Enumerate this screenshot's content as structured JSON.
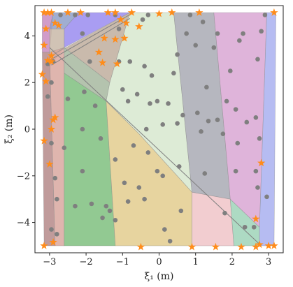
{
  "chart_data": {
    "type": "scatter",
    "xlabel": "ξ₁ (m)",
    "ylabel": "ξ₂ (m)",
    "xlim": [
      -3.4,
      3.4
    ],
    "ylim": [
      -5.3,
      5.3
    ],
    "xticks": [
      -3,
      -2,
      -1,
      0,
      1,
      2,
      3
    ],
    "xtick_labels": [
      "−3",
      "−2",
      "−1",
      "0",
      "1",
      "2",
      "3"
    ],
    "yticks": [
      -4,
      -2,
      0,
      2,
      4
    ],
    "ytick_labels": [
      "−4",
      "−2",
      "0",
      "2",
      "4"
    ],
    "grid": false,
    "regions": [
      {
        "color": "#c98bc0",
        "points": [
          [
            -3.2,
            5
          ],
          [
            -2.9,
            5
          ],
          [
            -3.0,
            3.3
          ],
          [
            -3.2,
            3.3
          ]
        ]
      },
      {
        "color": "#8fa0c9",
        "points": [
          [
            -2.9,
            5
          ],
          [
            -2.2,
            5
          ],
          [
            -2.6,
            4.3
          ],
          [
            -3.0,
            4.3
          ]
        ]
      },
      {
        "color": "#9a8cf0",
        "points": [
          [
            -2.2,
            5
          ],
          [
            -0.8,
            5
          ],
          [
            -2.6,
            3.5
          ],
          [
            -2.6,
            4.3
          ]
        ]
      },
      {
        "color": "#c9b8a8",
        "points": [
          [
            -3.0,
            4.3
          ],
          [
            -2.6,
            4.3
          ],
          [
            -2.6,
            3.5
          ],
          [
            -3.0,
            2.7
          ]
        ]
      },
      {
        "color": "#b58a8a",
        "points": [
          [
            -3.2,
            3.3
          ],
          [
            -3.0,
            3.3
          ],
          [
            -2.85,
            -5.0
          ],
          [
            -3.15,
            -5.0
          ]
        ]
      },
      {
        "color": "#d9a8a0",
        "points": [
          [
            -3.0,
            3.3
          ],
          [
            -2.6,
            3.5
          ],
          [
            -2.6,
            -5.0
          ],
          [
            -2.85,
            -5.0
          ]
        ]
      },
      {
        "color": "#bfae9e",
        "points": [
          [
            -2.9,
            3.2
          ],
          [
            -0.8,
            5
          ],
          [
            -1.35,
            2.0
          ],
          [
            -2.6,
            3.5
          ]
        ]
      },
      {
        "color": "#a7b8a0",
        "points": [
          [
            -2.6,
            3.5
          ],
          [
            -1.35,
            2.0
          ],
          [
            -1.45,
            1.2
          ],
          [
            -2.6,
            2.4
          ]
        ]
      },
      {
        "color": "#7fbf7f",
        "points": [
          [
            -2.6,
            2.4
          ],
          [
            -1.45,
            1.2
          ],
          [
            -1.2,
            -5.0
          ],
          [
            -2.6,
            -5.0
          ]
        ]
      },
      {
        "color": "#d7e8cf",
        "points": [
          [
            -0.8,
            5
          ],
          [
            0.4,
            5
          ],
          [
            0.9,
            -2.7
          ],
          [
            -0.55,
            -0.2
          ],
          [
            -1.45,
            1.2
          ],
          [
            -1.35,
            2.0
          ]
        ]
      },
      {
        "color": "#e3cc8e",
        "points": [
          [
            -1.45,
            1.2
          ],
          [
            -0.55,
            -0.2
          ],
          [
            0.9,
            -2.7
          ],
          [
            0.9,
            -5.0
          ],
          [
            -1.2,
            -5.0
          ]
        ]
      },
      {
        "color": "#a9aab4",
        "points": [
          [
            0.4,
            5
          ],
          [
            1.5,
            5
          ],
          [
            1.95,
            -3.0
          ],
          [
            0.9,
            -2.7
          ]
        ]
      },
      {
        "color": "#f0c4c8",
        "points": [
          [
            0.9,
            -2.7
          ],
          [
            1.95,
            -3.0
          ],
          [
            2.05,
            -5.0
          ],
          [
            0.9,
            -5.0
          ]
        ]
      },
      {
        "color": "#9fd4b8",
        "points": [
          [
            1.95,
            -3.0
          ],
          [
            2.75,
            -4.2
          ],
          [
            2.75,
            -5.0
          ],
          [
            2.05,
            -5.0
          ]
        ]
      },
      {
        "color": "#d9a7d4",
        "points": [
          [
            1.5,
            5
          ],
          [
            2.95,
            5
          ],
          [
            2.75,
            -4.2
          ],
          [
            1.95,
            -3.0
          ]
        ]
      },
      {
        "color": "#a9b0f0",
        "points": [
          [
            2.95,
            5
          ],
          [
            3.2,
            5
          ],
          [
            3.15,
            -5.0
          ],
          [
            2.75,
            -5.0
          ],
          [
            2.75,
            -4.2
          ]
        ]
      }
    ],
    "boundary_lines": [
      {
        "color": "#7f7f7f",
        "points": [
          [
            -2.95,
            2.75
          ],
          [
            -0.8,
            4.75
          ]
        ]
      },
      {
        "color": "#7f7f7f",
        "points": [
          [
            -2.95,
            3.0
          ],
          [
            -0.7,
            5.0
          ]
        ]
      },
      {
        "color": "#7f7f7f",
        "points": [
          [
            -3.0,
            3.5
          ],
          [
            2.8,
            -5.0
          ]
        ]
      }
    ],
    "series": [
      {
        "marker": "circle",
        "color": "#7f7f7f",
        "points": [
          [
            -2.7,
            4.9
          ],
          [
            -2.3,
            4.9
          ],
          [
            -1.95,
            4.9
          ],
          [
            -1.2,
            4.9
          ],
          [
            -0.3,
            4.9
          ],
          [
            0.85,
            4.9
          ],
          [
            2.9,
            4.9
          ],
          [
            -2.1,
            4.1
          ],
          [
            -1.1,
            4.3
          ],
          [
            -0.45,
            4.7
          ],
          [
            0.75,
            4.1
          ],
          [
            1.2,
            4.6
          ],
          [
            1.6,
            4.1
          ],
          [
            2.3,
            4.1
          ],
          [
            2.8,
            4.2
          ],
          [
            -3.05,
            2.8
          ],
          [
            -2.9,
            2.9
          ],
          [
            -1.9,
            2.9
          ],
          [
            -1.1,
            2.9
          ],
          [
            -0.8,
            2.9
          ],
          [
            -0.4,
            2.7
          ],
          [
            -0.2,
            2.3
          ],
          [
            0.5,
            3.2
          ],
          [
            1.0,
            3.6
          ],
          [
            0.4,
            2.4
          ],
          [
            1.5,
            3.5
          ],
          [
            2.2,
            3.8
          ],
          [
            2.7,
            3.0
          ],
          [
            1.3,
            1.8
          ],
          [
            1.95,
            2.5
          ],
          [
            -2.95,
            2.0
          ],
          [
            -3.05,
            1.4
          ],
          [
            -2.5,
            1.3
          ],
          [
            -2.05,
            1.6
          ],
          [
            -1.75,
            1.0
          ],
          [
            -1.0,
            1.7
          ],
          [
            -0.85,
            1.2
          ],
          [
            -0.6,
            1.5
          ],
          [
            -0.25,
            1.1
          ],
          [
            -0.05,
            1.2
          ],
          [
            0.25,
            1.1
          ],
          [
            0.65,
            0.6
          ],
          [
            0.5,
            0.25
          ],
          [
            1.05,
            0.7
          ],
          [
            1.35,
            0.35
          ],
          [
            1.6,
            0.4
          ],
          [
            1.85,
            1.2
          ],
          [
            2.1,
            0.85
          ],
          [
            2.4,
            0.3
          ],
          [
            2.65,
            0.5
          ],
          [
            -2.1,
            0.0
          ],
          [
            -1.6,
            -0.4
          ],
          [
            -0.7,
            -0.7
          ],
          [
            -0.35,
            0.0
          ],
          [
            0.1,
            0.2
          ],
          [
            1.15,
            -0.1
          ],
          [
            1.75,
            -0.2
          ],
          [
            2.15,
            -0.6
          ],
          [
            2.75,
            -0.4
          ],
          [
            -2.95,
            -0.6
          ],
          [
            -2.6,
            -0.8
          ],
          [
            -2.85,
            -2.1
          ],
          [
            -2.1,
            -1.8
          ],
          [
            -1.2,
            -1.3
          ],
          [
            -0.3,
            -1.0
          ],
          [
            -0.05,
            -1.8
          ],
          [
            0.1,
            -2.0
          ],
          [
            -0.95,
            -2.3
          ],
          [
            -0.55,
            -2.5
          ],
          [
            0.55,
            -1.6
          ],
          [
            1.25,
            -1.9
          ],
          [
            2.1,
            -1.8
          ],
          [
            2.65,
            -1.8
          ],
          [
            2.7,
            -2.5
          ],
          [
            2.95,
            -2.9
          ],
          [
            -2.8,
            -3.0
          ],
          [
            -2.3,
            -3.3
          ],
          [
            -1.85,
            -3.2
          ],
          [
            -1.45,
            -3.3
          ],
          [
            -1.35,
            -3.5
          ],
          [
            -1.2,
            -3.9
          ],
          [
            -1.55,
            -3.8
          ],
          [
            -0.85,
            -3.1
          ],
          [
            -0.4,
            -3.0
          ],
          [
            0.15,
            -4.3
          ],
          [
            0.3,
            -4.8
          ],
          [
            0.6,
            -3.5
          ],
          [
            1.8,
            -3.6
          ],
          [
            2.35,
            -4.2
          ],
          [
            2.6,
            -4.2
          ],
          [
            -2.95,
            -4.3
          ],
          [
            -2.8,
            -4.5
          ]
        ]
      },
      {
        "marker": "star",
        "color": "#ff8c1a",
        "points": [
          [
            -3.15,
            5.0
          ],
          [
            -3.05,
            5.0
          ],
          [
            -2.95,
            5.0
          ],
          [
            -2.5,
            5.0
          ],
          [
            -2.15,
            5.0
          ],
          [
            -1.4,
            5.0
          ],
          [
            -1.2,
            5.0
          ],
          [
            -0.75,
            5.0
          ],
          [
            0.0,
            4.95
          ],
          [
            0.35,
            5.0
          ],
          [
            1.1,
            5.0
          ],
          [
            3.15,
            5.0
          ],
          [
            -2.85,
            4.55
          ],
          [
            -2.75,
            4.45
          ],
          [
            -1.05,
            4.7
          ],
          [
            -0.9,
            4.55
          ],
          [
            -0.55,
            4.4
          ],
          [
            -3.1,
            4.3
          ],
          [
            -1.5,
            3.9
          ],
          [
            -1.2,
            3.85
          ],
          [
            -0.95,
            3.9
          ],
          [
            -1.65,
            3.3
          ],
          [
            -1.55,
            2.85
          ],
          [
            -1.15,
            2.8
          ],
          [
            -3.15,
            3.6
          ],
          [
            -2.95,
            3.15
          ],
          [
            -3.05,
            2.95
          ],
          [
            -2.95,
            2.9
          ],
          [
            -3.2,
            2.35
          ],
          [
            -3.1,
            2.05
          ],
          [
            -2.85,
            0.5
          ],
          [
            -2.9,
            0.4
          ],
          [
            -2.95,
            0.0
          ],
          [
            -3.15,
            -0.5
          ],
          [
            -3.0,
            -1.5
          ],
          [
            -3.15,
            -5.0
          ],
          [
            -2.9,
            -4.85
          ],
          [
            -0.5,
            -5.05
          ],
          [
            0.9,
            -5.05
          ],
          [
            1.55,
            -5.05
          ],
          [
            2.25,
            -5.05
          ],
          [
            2.65,
            -5.05
          ],
          [
            2.75,
            -4.95
          ],
          [
            3.0,
            -5.0
          ],
          [
            3.15,
            -5.0
          ],
          [
            2.8,
            -1.45
          ],
          [
            2.65,
            -3.85
          ]
        ]
      }
    ]
  }
}
